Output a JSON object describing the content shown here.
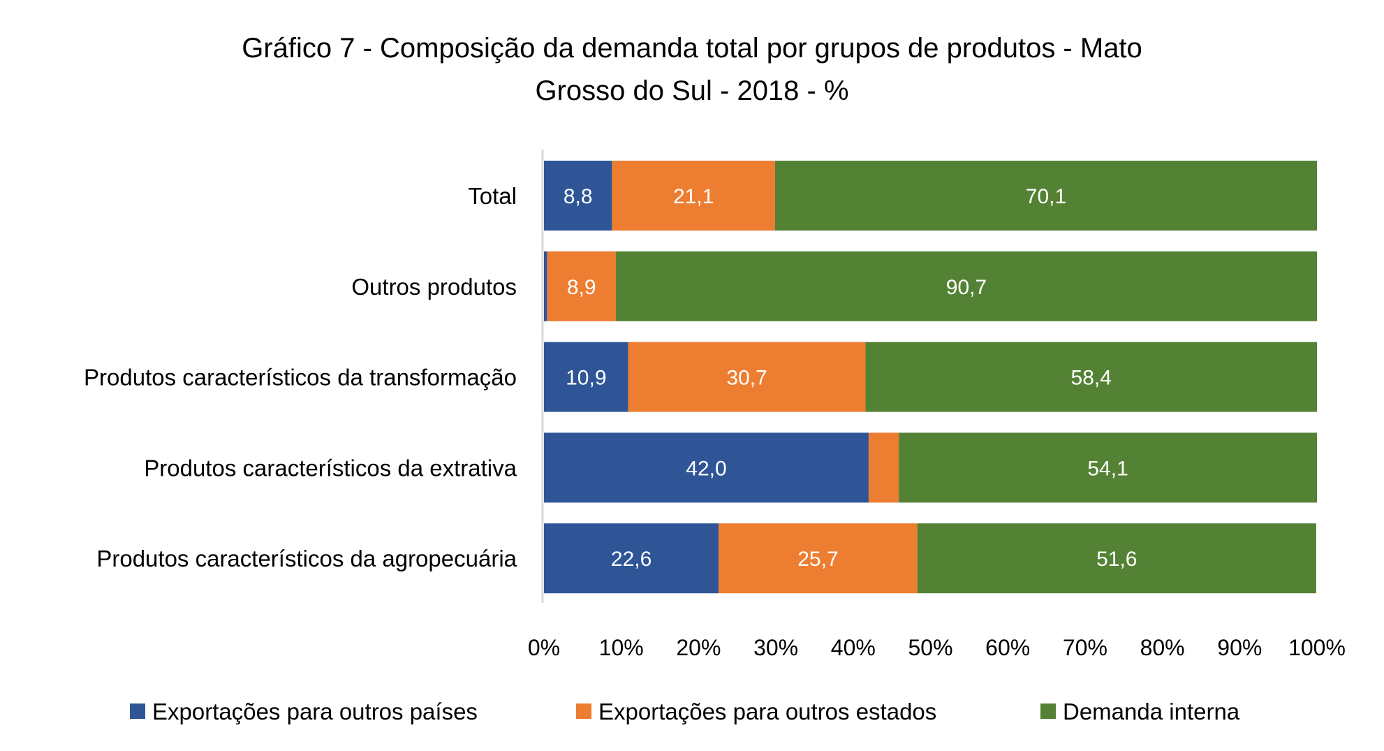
{
  "chart_data": {
    "type": "bar",
    "orientation": "horizontal",
    "stacked": "percent",
    "title": [
      "Gráfico 7 - Composição da demanda total por grupos de produtos - Mato",
      "Grosso do Sul - 2018 - %"
    ],
    "xlabel": "",
    "ylabel": "",
    "xlim": [
      0,
      100
    ],
    "x_ticks": [
      "0%",
      "10%",
      "20%",
      "30%",
      "40%",
      "50%",
      "60%",
      "70%",
      "80%",
      "90%",
      "100%"
    ],
    "grid": false,
    "legend_position": "bottom",
    "categories": [
      "Total",
      "Outros produtos",
      "Produtos característicos da transformação",
      "Produtos característicos da extrativa",
      "Produtos característicos da agropecuária"
    ],
    "series": [
      {
        "name": "Exportações para outros países",
        "color": "#2F5597",
        "values": [
          8.8,
          0.4,
          10.9,
          42.0,
          22.6
        ],
        "labels": [
          "8,8",
          "",
          "10,9",
          "42,0",
          "22,6"
        ]
      },
      {
        "name": "Exportações para outros estados",
        "color": "#ED7D31",
        "values": [
          21.1,
          8.9,
          30.7,
          3.9,
          25.7
        ],
        "labels": [
          "21,1",
          "8,9",
          "30,7",
          "",
          "25,7"
        ]
      },
      {
        "name": "Demanda interna",
        "color": "#548235",
        "values": [
          70.1,
          90.7,
          58.4,
          54.1,
          51.6
        ],
        "labels": [
          "70,1",
          "90,7",
          "58,4",
          "54,1",
          "51,6"
        ]
      }
    ]
  }
}
